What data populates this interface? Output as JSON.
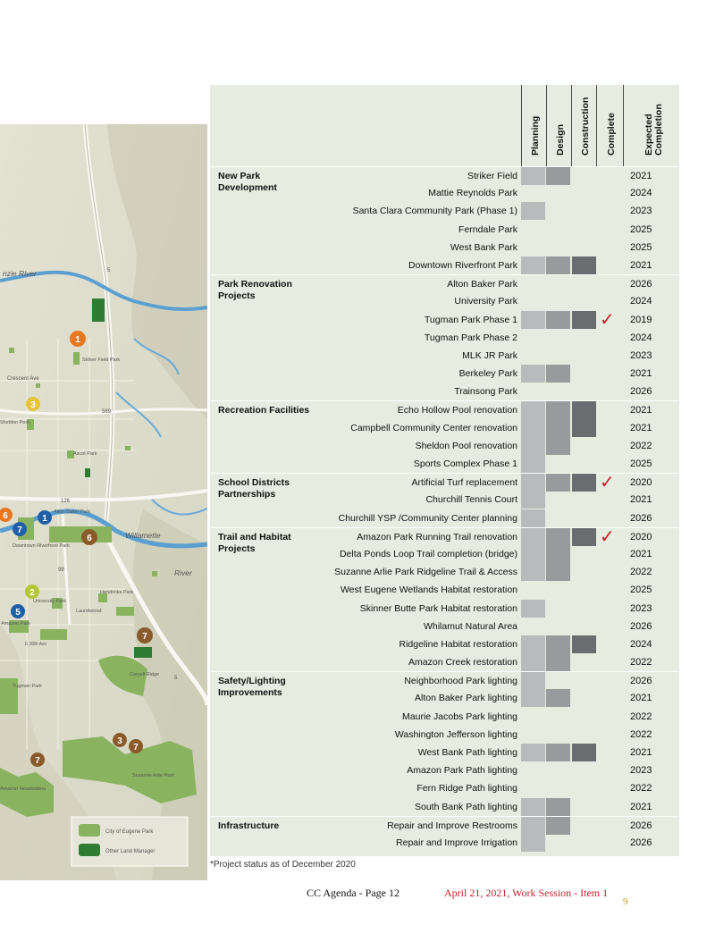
{
  "map": {
    "labels": {
      "river_top": "nzie River",
      "crescent": "Crescent Ave",
      "striker": "Striker Field Park",
      "sheldon": "Sheldon Pool",
      "ascot": "Ascot Park",
      "alton": "Alton Baker Park",
      "downtown": "Downtown Riverfront Park",
      "willamette": "Willamette",
      "river_right": "River",
      "university": "University Park",
      "hendricks": "Hendricks Park",
      "laurelwood": "Laurelwood",
      "amazon": "Amazon Park",
      "e30": "E 30th Ave",
      "tugman": "Tugman Park",
      "coryell": "Coryell Ridge",
      "amazon_headwaters": "Amazon Headwaters",
      "suzanne": "Suzanne Arlie Park",
      "hwy5a": "5",
      "hwy5b": "5",
      "r569": "569",
      "r126": "126",
      "r99": "99"
    },
    "markers": [
      "1",
      "3",
      "6",
      "7",
      "1",
      "6",
      "2",
      "5",
      "7",
      "3",
      "7",
      "7"
    ],
    "legend": {
      "city": "City of Eugene Park",
      "other": "Other Land Manager"
    },
    "colors": {
      "city_park": "#8ab360",
      "other_land": "#2e7d32",
      "marker_orange": "#e87722",
      "marker_yellow": "#e8c23a",
      "marker_lime": "#b5c634",
      "marker_blue": "#1f5fa8",
      "marker_brown": "#8a5a2b"
    }
  },
  "table": {
    "columns": {
      "planning": "Planning",
      "design": "Design",
      "construction": "Construction",
      "complete": "Complete",
      "expected": "Expected Completion"
    },
    "colors": {
      "planning": "#b8babb",
      "design": "#999a9c",
      "construction": "#6b6c70",
      "check": "#c0232e",
      "background": "#e6ecdf"
    },
    "groups": [
      {
        "category": "New Park Development",
        "rows": [
          {
            "name": "Striker Field",
            "stage": 2,
            "complete": false,
            "year": "2021"
          },
          {
            "name": "Mattie Reynolds Park",
            "stage": 0,
            "complete": false,
            "year": "2024"
          },
          {
            "name": "Santa Clara Community Park (Phase 1)",
            "stage": 1,
            "complete": false,
            "year": "2023"
          },
          {
            "name": "Ferndale Park",
            "stage": 0,
            "complete": false,
            "year": "2025"
          },
          {
            "name": "West Bank Park",
            "stage": 0,
            "complete": false,
            "year": "2025"
          },
          {
            "name": "Downtown Riverfront Park",
            "stage": 3,
            "complete": false,
            "year": "2021"
          }
        ]
      },
      {
        "category": "Park Renovation Projects",
        "rows": [
          {
            "name": "Alton Baker Park",
            "stage": 0,
            "complete": false,
            "year": "2026"
          },
          {
            "name": "University Park",
            "stage": 0,
            "complete": false,
            "year": "2024"
          },
          {
            "name": "Tugman Park Phase 1",
            "stage": 3,
            "complete": true,
            "year": "2019"
          },
          {
            "name": "Tugman Park Phase 2",
            "stage": 0,
            "complete": false,
            "year": "2024"
          },
          {
            "name": "MLK JR Park",
            "stage": 0,
            "complete": false,
            "year": "2023"
          },
          {
            "name": "Berkeley Park",
            "stage": 2,
            "complete": false,
            "year": "2021"
          },
          {
            "name": "Trainsong Park",
            "stage": 0,
            "complete": false,
            "year": "2026"
          }
        ]
      },
      {
        "category": "Recreation Facilities",
        "rows": [
          {
            "name": "Echo Hollow Pool renovation",
            "stage": 3,
            "complete": false,
            "year": "2021"
          },
          {
            "name": "Campbell Community Center renovation",
            "stage": 3,
            "complete": false,
            "year": "2021"
          },
          {
            "name": "Sheldon Pool renovation",
            "stage": 2,
            "complete": false,
            "year": "2022"
          },
          {
            "name": "Sports Complex Phase 1",
            "stage": 1,
            "complete": false,
            "year": "2025"
          }
        ]
      },
      {
        "category": "School Districts Partnerships",
        "rows": [
          {
            "name": "Artificial Turf replacement",
            "stage": 3,
            "complete": true,
            "year": "2020"
          },
          {
            "name": "Churchill Tennis Court",
            "stage": 1,
            "complete": false,
            "year": "2021"
          },
          {
            "name": "Churchill YSP /Community Center planning",
            "stage": 1,
            "complete": false,
            "year": "2026"
          }
        ]
      },
      {
        "category": "Trail and Habitat Projects",
        "rows": [
          {
            "name": "Amazon Park Running Trail renovation",
            "stage": 3,
            "complete": true,
            "year": "2020"
          },
          {
            "name": "Delta Ponds Loop Trail completion (bridge)",
            "stage": 2,
            "complete": false,
            "year": "2021"
          },
          {
            "name": "Suzanne Arlie Park Ridgeline Trail & Access",
            "stage": 2,
            "complete": false,
            "year": "2022"
          },
          {
            "name": "West Eugene Wetlands Habitat restoration",
            "stage": 0,
            "complete": false,
            "year": "2025"
          },
          {
            "name": "Skinner Butte Park Habitat restoration",
            "stage": 1,
            "complete": false,
            "year": "2023"
          },
          {
            "name": "Whilamut Natural Area",
            "stage": 0,
            "complete": false,
            "year": "2026"
          },
          {
            "name": "Ridgeline Habitat restoration",
            "stage": 3,
            "complete": false,
            "year": "2024"
          },
          {
            "name": "Amazon Creek restoration",
            "stage": 2,
            "complete": false,
            "year": "2022"
          }
        ]
      },
      {
        "category": "Safety/Lighting Improvements",
        "rows": [
          {
            "name": "Neighborhood Park lighting",
            "stage": 1,
            "complete": false,
            "year": "2026"
          },
          {
            "name": "Alton Baker Park lighting",
            "stage": 2,
            "complete": false,
            "year": "2021"
          },
          {
            "name": "Maurie Jacobs Park lighting",
            "stage": 0,
            "complete": false,
            "year": "2022"
          },
          {
            "name": "Washington Jefferson lighting",
            "stage": 0,
            "complete": false,
            "year": "2022"
          },
          {
            "name": "West Bank Path lighting",
            "stage": 3,
            "complete": false,
            "year": "2021"
          },
          {
            "name": "Amazon Park Path lighting",
            "stage": 0,
            "complete": false,
            "year": "2023"
          },
          {
            "name": "Fern Ridge Path lighting",
            "stage": 0,
            "complete": false,
            "year": "2022"
          },
          {
            "name": "South Bank Path lighting",
            "stage": 2,
            "complete": false,
            "year": "2021"
          }
        ]
      },
      {
        "category": "Infrastructure",
        "rows": [
          {
            "name": "Repair and Improve Restrooms",
            "stage": 2,
            "complete": false,
            "year": "2026"
          },
          {
            "name": "Repair and Improve Irrigation",
            "stage": 1,
            "complete": false,
            "year": "2026"
          }
        ]
      }
    ]
  },
  "footnote": "*Project status as of December 2020",
  "footer": {
    "agenda": "CC Agenda - Page 12",
    "date": "April 21, 2021, Work Session - Item 1",
    "page": "9"
  }
}
